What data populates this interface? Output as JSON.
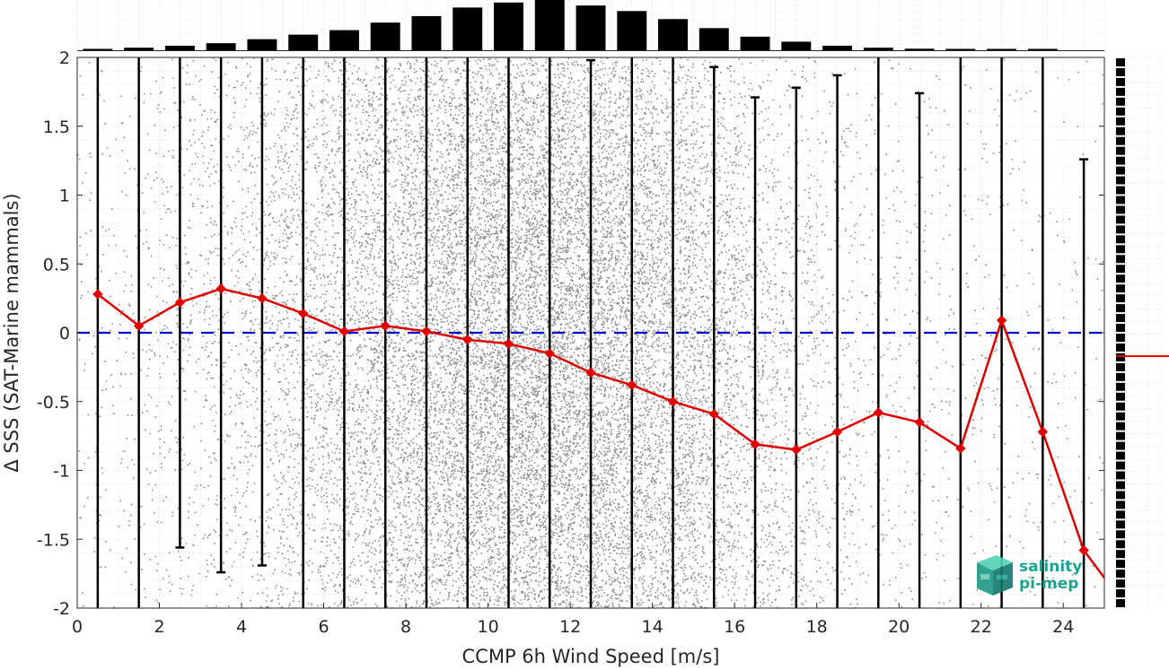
{
  "chart_data": {
    "type": "scatter",
    "xlabel": "CCMP 6h Wind Speed [m/s]",
    "ylabel": "Δ SSS (SAT-Marine mammals)",
    "xlim": [
      0,
      25
    ],
    "ylim": [
      -2,
      2
    ],
    "xticks": [
      0,
      2,
      4,
      6,
      8,
      10,
      12,
      14,
      16,
      18,
      20,
      22,
      24
    ],
    "yticks": [
      -2,
      -1.5,
      -1,
      -0.5,
      0,
      0.5,
      1,
      1.5,
      2
    ],
    "grid": true,
    "bin_centers": [
      0.5,
      1.5,
      2.5,
      3.5,
      4.5,
      5.5,
      6.5,
      7.5,
      8.5,
      9.5,
      10.5,
      11.5,
      12.5,
      13.5,
      14.5,
      15.5,
      16.5,
      17.5,
      18.5,
      19.5,
      20.5,
      21.5,
      22.5,
      23.5,
      24.5
    ],
    "series": [
      {
        "style": "red line with diamond markers",
        "color": "#e00000",
        "values": [
          0.28,
          0.05,
          0.22,
          0.32,
          0.25,
          0.14,
          0.01,
          0.05,
          0.01,
          -0.05,
          -0.08,
          -0.15,
          -0.29,
          -0.38,
          -0.5,
          -0.59,
          -0.81,
          -0.85,
          -0.72,
          -0.58,
          -0.65,
          -0.84,
          0.09,
          -0.72,
          -1.58
        ],
        "extends_to": {
          "x": 25,
          "y": -1.78
        }
      }
    ],
    "error_bars": {
      "color": "#000000",
      "upper": [
        2,
        2,
        2,
        2,
        2,
        2,
        2,
        2,
        2,
        2,
        2,
        2,
        1.98,
        2,
        2,
        1.93,
        1.71,
        1.78,
        1.87,
        2,
        1.74,
        2,
        2,
        2,
        1.26
      ],
      "lower": [
        -2,
        -2,
        -1.56,
        -1.74,
        -1.69,
        -2,
        -2,
        -2,
        -2,
        -2,
        -2,
        -2,
        -2,
        -2,
        -2,
        -2,
        -2,
        -2,
        -2,
        -2,
        -2,
        -2,
        -2,
        -2,
        -2
      ]
    },
    "reference_line": {
      "y": 0,
      "color": "#0000d0",
      "style": "dashed"
    },
    "scatter_points_color": "#8c8c8c",
    "top_histogram": {
      "relative_counts": [
        0.02,
        0.05,
        0.09,
        0.14,
        0.22,
        0.31,
        0.4,
        0.55,
        0.68,
        0.85,
        0.95,
        1.0,
        0.89,
        0.78,
        0.62,
        0.44,
        0.27,
        0.17,
        0.09,
        0.05,
        0.03,
        0.02,
        0.02,
        0.01,
        0.0
      ],
      "color": "#000000"
    },
    "right_marginal": {
      "mean_marker_y": -0.17,
      "marker_color": "#e00000"
    }
  },
  "logo": {
    "line1": "salinity",
    "line2": "pi-mep",
    "color": "#1ba58f"
  }
}
